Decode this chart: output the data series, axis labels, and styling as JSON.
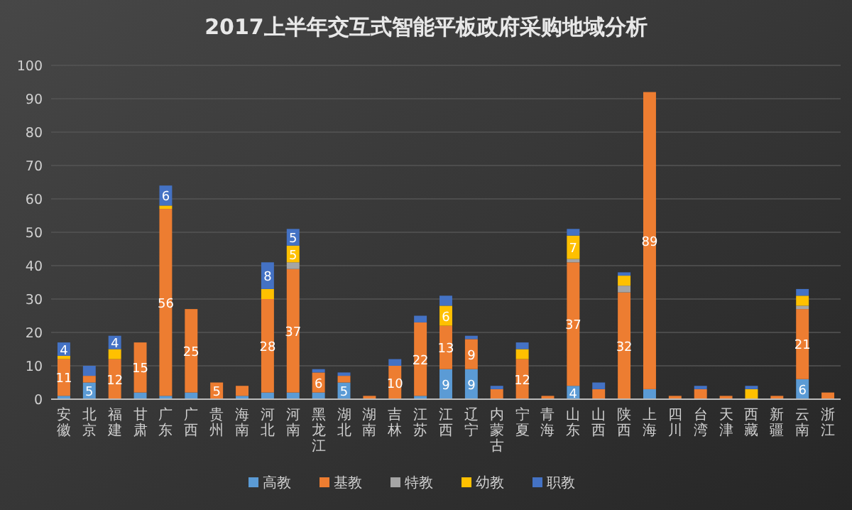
{
  "chart_data": {
    "type": "bar",
    "stacked": true,
    "title": "2017上半年交互式智能平板政府采购地域分析",
    "categories": [
      "安徽",
      "北京",
      "福建",
      "甘肃",
      "广东",
      "广西",
      "贵州",
      "海南",
      "河北",
      "河南",
      "黑龙江",
      "湖北",
      "湖南",
      "吉林",
      "江苏",
      "江西",
      "辽宁",
      "内蒙古",
      "宁夏",
      "青海",
      "山东",
      "山西",
      "陕西",
      "上海",
      "四川",
      "台湾",
      "天津",
      "西藏",
      "新疆",
      "云南",
      "浙江"
    ],
    "series": [
      {
        "name": "高教",
        "color": "#5b9bd5",
        "values": [
          1,
          5,
          null,
          2,
          1,
          2,
          null,
          1,
          2,
          2,
          2,
          5,
          null,
          null,
          1,
          9,
          9,
          null,
          null,
          null,
          4,
          null,
          null,
          3,
          null,
          null,
          null,
          null,
          null,
          6,
          null
        ],
        "value_labels": [
          null,
          "5",
          null,
          null,
          null,
          null,
          null,
          null,
          null,
          null,
          null,
          "5",
          null,
          null,
          null,
          "9",
          "9",
          null,
          null,
          null,
          "4",
          null,
          null,
          null,
          null,
          null,
          null,
          null,
          null,
          "6",
          null
        ]
      },
      {
        "name": "基教",
        "color": "#ed7d31",
        "values": [
          11,
          2,
          12,
          15,
          56,
          25,
          5,
          3,
          28,
          37,
          6,
          2,
          1,
          10,
          22,
          13,
          9,
          3,
          12,
          1,
          37,
          3,
          32,
          89,
          1,
          3,
          1,
          null,
          1,
          21,
          2
        ],
        "value_labels": [
          "11",
          null,
          "12",
          "15",
          "56",
          "25",
          "5",
          null,
          "28",
          "37",
          "6",
          null,
          null,
          "10",
          "22",
          "13",
          "9",
          null,
          "12",
          null,
          "37",
          null,
          "32",
          "89",
          null,
          null,
          null,
          null,
          null,
          "21",
          null
        ]
      },
      {
        "name": "特教",
        "color": "#a5a5a5",
        "values": [
          null,
          null,
          null,
          null,
          null,
          null,
          null,
          null,
          null,
          2,
          null,
          null,
          null,
          null,
          null,
          null,
          null,
          null,
          null,
          null,
          1,
          null,
          2,
          null,
          null,
          null,
          null,
          null,
          null,
          1,
          null
        ]
      },
      {
        "name": "幼教",
        "color": "#ffc000",
        "values": [
          1,
          null,
          3,
          null,
          1,
          null,
          null,
          null,
          3,
          5,
          null,
          null,
          null,
          null,
          null,
          6,
          null,
          null,
          3,
          null,
          7,
          null,
          3,
          null,
          null,
          null,
          null,
          3,
          null,
          3,
          null
        ],
        "value_labels": [
          null,
          null,
          null,
          null,
          null,
          null,
          null,
          null,
          null,
          "5",
          null,
          null,
          null,
          null,
          null,
          "6",
          null,
          null,
          null,
          null,
          "7",
          null,
          null,
          null,
          null,
          null,
          null,
          null,
          null,
          null,
          null
        ]
      },
      {
        "name": "职教",
        "color": "#4472c4",
        "values": [
          4,
          3,
          4,
          null,
          6,
          null,
          null,
          null,
          8,
          5,
          1,
          1,
          null,
          2,
          2,
          3,
          1,
          1,
          2,
          null,
          2,
          2,
          1,
          null,
          null,
          1,
          null,
          1,
          null,
          2,
          null
        ],
        "value_labels": [
          "4",
          null,
          "4",
          null,
          "6",
          null,
          null,
          null,
          "8",
          "5",
          null,
          null,
          null,
          null,
          null,
          null,
          null,
          null,
          null,
          null,
          null,
          null,
          null,
          null,
          null,
          null,
          null,
          null,
          null,
          null,
          null
        ]
      }
    ],
    "ylim": [
      0,
      100
    ],
    "yticks": [
      0,
      10,
      20,
      30,
      40,
      50,
      60,
      70,
      80,
      90,
      100
    ],
    "grid": "y",
    "legend": "bottom"
  }
}
